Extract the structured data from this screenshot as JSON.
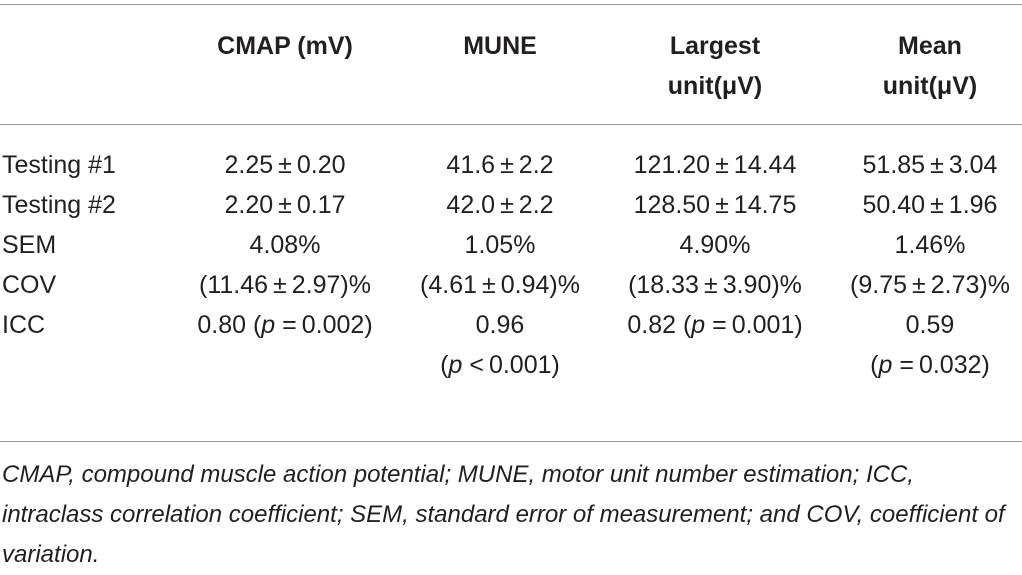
{
  "table": {
    "headers": {
      "col1": "CMAP (mV)",
      "col2": "MUNE",
      "col3_line1": "Largest",
      "col3_line2": "unit(μV)",
      "col4_line1": "Mean",
      "col4_line2": "unit(μV)"
    },
    "rows": [
      {
        "label": "Testing #1",
        "cmap": "2.25 ± 0.20",
        "mune": "41.6 ± 2.2",
        "largest": "121.20 ± 14.44",
        "mean": "51.85 ± 3.04"
      },
      {
        "label": "Testing #2",
        "cmap": "2.20 ± 0.17",
        "mune": "42.0 ± 2.2",
        "largest": "128.50 ± 14.75",
        "mean": "50.40 ± 1.96"
      },
      {
        "label": "SEM",
        "cmap": "4.08%",
        "mune": "1.05%",
        "largest": "4.90%",
        "mean": "1.46%"
      },
      {
        "label": "COV",
        "cmap": "(11.46 ± 2.97)%",
        "mune": "(4.61 ± 0.94)%",
        "largest": "(18.33 ± 3.90)%",
        "mean": "(9.75 ± 2.73)%"
      },
      {
        "label": "ICC",
        "cmap": {
          "value": "0.80 (",
          "p": "p",
          "rest": " = 0.002)"
        },
        "mune": {
          "line1": "0.96",
          "line2_open": "(",
          "p": "p",
          "line2_rest": " < 0.001)"
        },
        "largest": {
          "value": "0.82 (",
          "p": "p",
          "rest": " = 0.001)"
        },
        "mean": {
          "line1": "0.59",
          "line2_open": "(",
          "p": "p",
          "line2_rest": " = 0.032)"
        }
      }
    ]
  },
  "footnote": "CMAP, compound muscle action potential; MUNE, motor unit number estimation; ICC, intraclass correlation coefficient; SEM, standard error of measurement; and COV, coefficient of variation."
}
